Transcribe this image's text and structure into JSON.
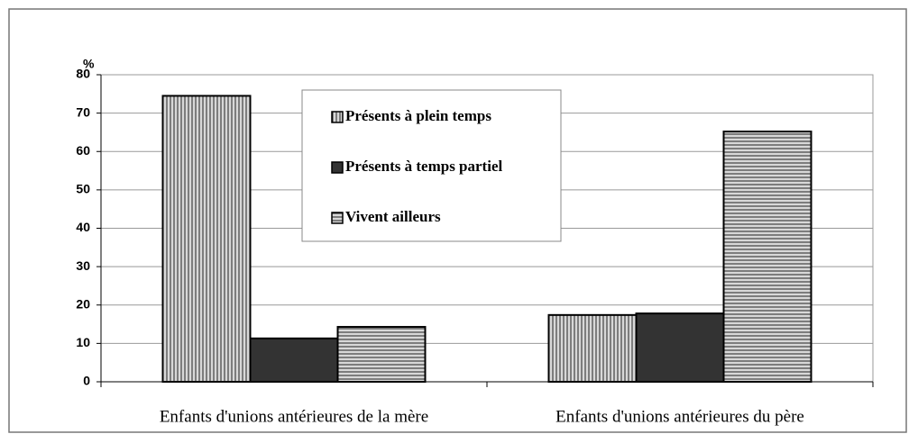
{
  "chart_data": {
    "type": "bar",
    "y_label": "%",
    "categories": [
      "Enfants d'unions antérieures de la mère",
      "Enfants d'unions antérieures du père"
    ],
    "series": [
      {
        "name": "Présents à plein temps",
        "color": "#d8d8d8",
        "pattern": "vertical",
        "values": [
          74.5,
          17.4
        ]
      },
      {
        "name": "Présents à temps partiel",
        "color": "#333333",
        "pattern": "solid",
        "values": [
          11.3,
          17.8
        ]
      },
      {
        "name": "Vivent ailleurs",
        "color": "#d8d8d8",
        "pattern": "horizontal",
        "values": [
          14.3,
          65.2
        ]
      }
    ],
    "ylim": [
      0,
      80
    ],
    "yticks": [
      0,
      10,
      20,
      30,
      40,
      50,
      60,
      70,
      80
    ],
    "grid": true
  }
}
